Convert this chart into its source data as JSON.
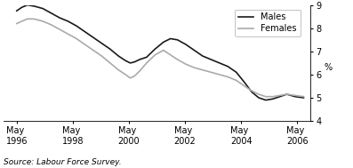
{
  "title": "",
  "ylabel": "%",
  "source_text": "Source: Labour Force Survey.",
  "ylim": [
    4,
    9
  ],
  "yticks": [
    4,
    5,
    6,
    7,
    8,
    9
  ],
  "x_tick_labels": [
    "May\n1996",
    "May\n1998",
    "May\n2000",
    "May\n2002",
    "May\n2004",
    "May\n2006"
  ],
  "x_tick_positions": [
    1996.37,
    1998.37,
    2000.37,
    2002.37,
    2004.37,
    2006.37
  ],
  "xlim": [
    1995.9,
    2006.85
  ],
  "males_x": [
    1996.37,
    1996.55,
    1996.75,
    1997.0,
    1997.3,
    1997.6,
    1997.9,
    1998.2,
    1998.5,
    1998.8,
    1999.1,
    1999.4,
    1999.7,
    2000.0,
    2000.25,
    2000.42,
    2000.58,
    2000.75,
    2001.0,
    2001.3,
    2001.6,
    2001.85,
    2002.1,
    2002.4,
    2002.7,
    2003.0,
    2003.3,
    2003.6,
    2003.9,
    2004.2,
    2004.5,
    2004.75,
    2005.0,
    2005.25,
    2005.5,
    2005.75,
    2006.0,
    2006.3,
    2006.6
  ],
  "males_y": [
    8.75,
    8.9,
    9.0,
    8.95,
    8.85,
    8.65,
    8.45,
    8.3,
    8.1,
    7.85,
    7.6,
    7.35,
    7.1,
    6.8,
    6.6,
    6.5,
    6.55,
    6.65,
    6.75,
    7.1,
    7.4,
    7.55,
    7.5,
    7.3,
    7.05,
    6.8,
    6.65,
    6.5,
    6.35,
    6.1,
    5.65,
    5.25,
    5.0,
    4.9,
    4.95,
    5.05,
    5.15,
    5.05,
    5.0
  ],
  "females_x": [
    1996.37,
    1996.55,
    1996.75,
    1997.0,
    1997.3,
    1997.6,
    1997.9,
    1998.2,
    1998.5,
    1998.8,
    1999.1,
    1999.4,
    1999.7,
    2000.0,
    2000.25,
    2000.42,
    2000.58,
    2000.75,
    2001.0,
    2001.3,
    2001.6,
    2001.85,
    2002.1,
    2002.4,
    2002.7,
    2003.0,
    2003.3,
    2003.6,
    2003.9,
    2004.2,
    2004.5,
    2004.75,
    2005.0,
    2005.25,
    2005.5,
    2005.75,
    2006.0,
    2006.3,
    2006.6
  ],
  "females_y": [
    8.2,
    8.3,
    8.4,
    8.4,
    8.3,
    8.15,
    7.95,
    7.75,
    7.55,
    7.3,
    7.05,
    6.8,
    6.5,
    6.2,
    6.0,
    5.85,
    5.95,
    6.15,
    6.5,
    6.85,
    7.05,
    6.85,
    6.65,
    6.45,
    6.3,
    6.2,
    6.1,
    6.0,
    5.9,
    5.75,
    5.5,
    5.3,
    5.15,
    5.05,
    5.05,
    5.1,
    5.15,
    5.1,
    5.05
  ],
  "males_color": "#1a1a1a",
  "females_color": "#aaaaaa",
  "males_lw": 1.2,
  "females_lw": 1.2,
  "legend_males": "Males",
  "legend_females": "Females",
  "bg_color": "#ffffff",
  "source_fontsize": 6.5,
  "legend_fontsize": 7,
  "tick_fontsize": 7,
  "ylabel_fontsize": 7
}
